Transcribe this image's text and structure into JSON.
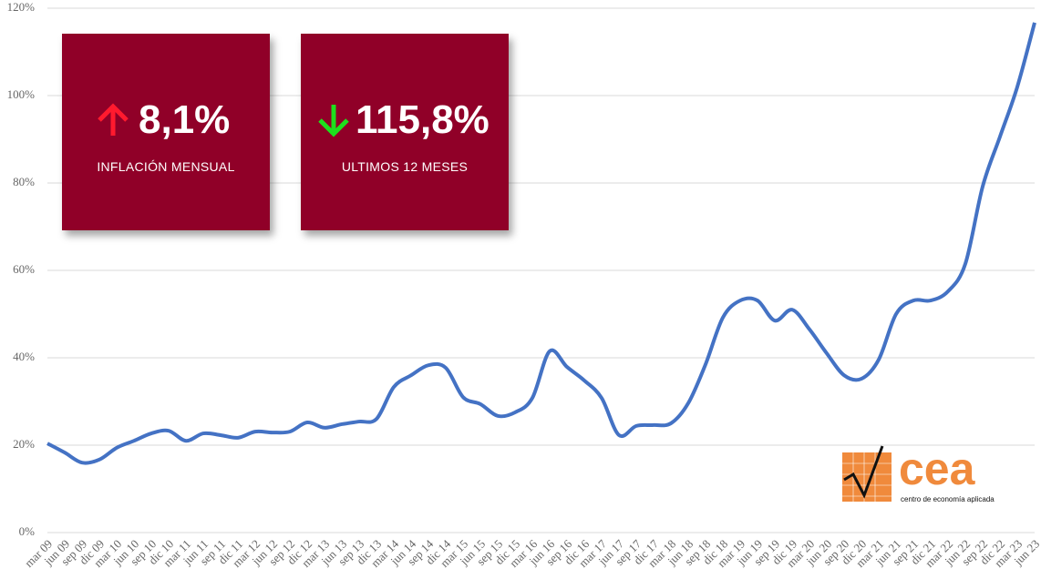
{
  "chart_data": {
    "type": "line",
    "categories": [
      "mar 09",
      "jun 09",
      "sep 09",
      "dic 09",
      "mar 10",
      "jun 10",
      "sep 10",
      "dic 10",
      "mar 11",
      "jun 11",
      "sep 11",
      "dic 11",
      "mar 12",
      "jun 12",
      "sep 12",
      "dic 12",
      "mar 13",
      "jun 13",
      "sep 13",
      "dic 13",
      "mar 14",
      "jun 14",
      "sep 14",
      "dic 14",
      "mar 15",
      "jun 15",
      "sep 15",
      "dic 15",
      "mar 16",
      "jun 16",
      "sep 16",
      "dic 16",
      "mar 17",
      "jun 17",
      "sep 17",
      "dic 17",
      "mar 18",
      "jun 18",
      "sep 18",
      "dic 18",
      "mar 19",
      "jun 19",
      "sep 19",
      "dic 19",
      "mar 20",
      "jun 20",
      "sep 20",
      "dic 20",
      "mar 21",
      "jun 21",
      "sep 21",
      "dic 21",
      "mar 22",
      "jun 22",
      "sep 22",
      "dic 22",
      "mar 23",
      "jun 23"
    ],
    "values": [
      20.4,
      18.3,
      16,
      16.7,
      19.4,
      21,
      22.7,
      23.3,
      21,
      22.7,
      22.3,
      21.7,
      23.1,
      22.9,
      23.1,
      25.2,
      24,
      24.8,
      25.4,
      26,
      33.3,
      36,
      38.3,
      37.7,
      31,
      29.4,
      26.7,
      27.5,
      30.8,
      41.5,
      37.9,
      34.8,
      30.8,
      22.3,
      24.4,
      24.6,
      25,
      29.6,
      38.5,
      49.2,
      53.1,
      53.1,
      48.5,
      51,
      46.5,
      41,
      36,
      35.2,
      39.6,
      50,
      53.1,
      53.1,
      55.2,
      61.5,
      79.2,
      90.6,
      102,
      116.7
    ],
    "color": "#4472c4",
    "ylim": [
      0,
      120
    ],
    "yticks": [
      {
        "value": 0,
        "label": "0%"
      },
      {
        "value": 20,
        "label": "20%"
      },
      {
        "value": 40,
        "label": "40%"
      },
      {
        "value": 60,
        "label": "60%"
      },
      {
        "value": 80,
        "label": "80%"
      },
      {
        "value": 100,
        "label": "100%"
      },
      {
        "value": 120,
        "label": "120%"
      }
    ],
    "grid": true
  },
  "cards": [
    {
      "value": "8,1%",
      "label": "INFLACIÓN MENSUAL"
    },
    {
      "value": "115,8%",
      "label": "ULTIMOS 12 MESES"
    }
  ],
  "logo": {
    "name": "cea",
    "subtitle": "centro de economía aplicada"
  }
}
